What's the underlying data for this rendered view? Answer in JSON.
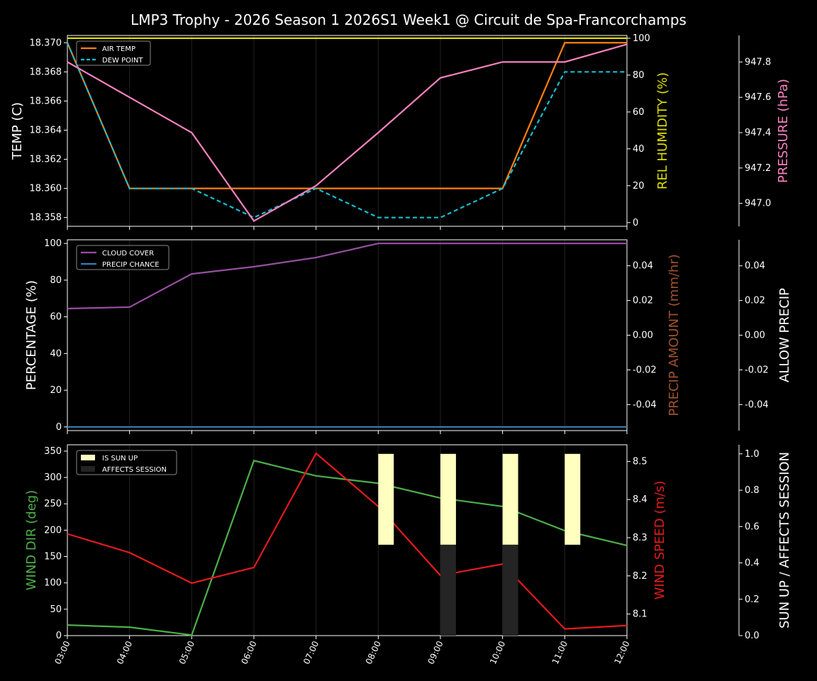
{
  "title": "LMP3 Trophy - 2026 Season 1 2026S1 Week1 @ Circuit de Spa-Francorchamps",
  "colors": {
    "background": "#000000",
    "air_temp": "#ff7f0e",
    "dew_point": "#17becf",
    "humidity": "#dddd00",
    "pressure": "#f781bf",
    "cloud": "#984ea3",
    "precip_chance": "#377eb8",
    "precip_amount": "#a0522d",
    "wind_dir": "#4daf4a",
    "wind_speed": "#e41a1c",
    "sun_up": "#ffffc0",
    "affects_session": "#242424"
  },
  "chart_data": [
    {
      "type": "line",
      "x": [
        "03:00",
        "04:00",
        "05:00",
        "06:00",
        "07:00",
        "08:00",
        "09:00",
        "10:00",
        "11:00",
        "12:00"
      ],
      "axes": {
        "left": {
          "label": "TEMP (C)",
          "ylim": [
            18.3574,
            18.3705
          ],
          "ticks": [
            "18.358",
            "18.360",
            "18.362",
            "18.364",
            "18.366",
            "18.368",
            "18.370"
          ]
        },
        "right1": {
          "label": "REL HUMIDITY (%)",
          "ylim": [
            -2,
            101.5
          ],
          "ticks": [
            "0",
            "20",
            "40",
            "60",
            "80",
            "100"
          ]
        },
        "right2": {
          "label": "PRESSURE (hPa)",
          "ylim": [
            946.87,
            947.95
          ],
          "ticks": [
            "947.0",
            "947.2",
            "947.4",
            "947.6",
            "947.8"
          ]
        }
      },
      "legend": {
        "placement": "top-left",
        "entries": [
          "AIR TEMP",
          "DEW POINT"
        ]
      },
      "series": [
        {
          "name": "AIR TEMP",
          "axis": "left",
          "style": "solid",
          "values": [
            18.37,
            18.36,
            18.36,
            18.36,
            18.36,
            18.36,
            18.36,
            18.36,
            18.37,
            18.37
          ]
        },
        {
          "name": "DEW POINT",
          "axis": "left",
          "style": "dashed",
          "values": [
            18.37,
            18.36,
            18.36,
            18.358,
            18.36,
            18.358,
            18.358,
            18.36,
            18.368,
            18.368
          ]
        },
        {
          "axis": "right1",
          "key": "humidity",
          "values": [
            100,
            100,
            100,
            100,
            100,
            100,
            100,
            100,
            100,
            100
          ]
        },
        {
          "axis": "right2",
          "key": "pressure",
          "values": [
            947.8,
            947.6,
            947.4,
            946.9,
            947.1,
            947.4,
            947.71,
            947.8,
            947.8,
            947.9
          ]
        }
      ]
    },
    {
      "type": "line",
      "x": [
        "03:00",
        "04:00",
        "05:00",
        "06:00",
        "07:00",
        "08:00",
        "09:00",
        "10:00",
        "11:00",
        "12:00"
      ],
      "axes": {
        "left": {
          "label": "PERCENTAGE (%)",
          "ylim": [
            -2,
            102
          ],
          "ticks": [
            "0",
            "20",
            "40",
            "60",
            "80",
            "100"
          ]
        },
        "right1": {
          "label": "PRECIP AMOUNT (mm/hr)",
          "ylim": [
            -0.055,
            0.055
          ],
          "ticks": [
            "-0.04",
            "-0.02",
            "0.00",
            "0.02",
            "0.04"
          ]
        },
        "right2": {
          "label": "ALLOW PRECIP",
          "ylim": [
            -0.055,
            0.055
          ],
          "ticks": [
            "-0.04",
            "-0.02",
            "0.00",
            "0.02",
            "0.04"
          ]
        }
      },
      "legend": {
        "placement": "top-left",
        "entries": [
          "CLOUD COVER",
          "PRECIP CHANCE"
        ]
      },
      "series": [
        {
          "name": "CLOUD COVER",
          "axis": "left",
          "values": [
            64.5,
            65.3,
            83.4,
            87.3,
            92.3,
            100,
            100,
            100,
            100,
            100
          ]
        },
        {
          "name": "PRECIP CHANCE",
          "axis": "left",
          "values": [
            0,
            0,
            0,
            0,
            0,
            0,
            0,
            0,
            0,
            0
          ]
        }
      ]
    },
    {
      "type": "line",
      "x": [
        "03:00",
        "04:00",
        "05:00",
        "06:00",
        "07:00",
        "08:00",
        "09:00",
        "10:00",
        "11:00",
        "12:00"
      ],
      "axes": {
        "left": {
          "label": "WIND DIR (deg)",
          "ylim": [
            0,
            362
          ],
          "ticks": [
            "0",
            "50",
            "100",
            "150",
            "200",
            "250",
            "300",
            "350"
          ]
        },
        "right1": {
          "label": "WIND SPEED (m/s)",
          "ylim": [
            8.0435,
            8.5435
          ],
          "ticks": [
            "8.1",
            "8.2",
            "8.3",
            "8.4",
            "8.5"
          ]
        },
        "right2": {
          "label": "SUN UP / AFFECTS SESSION",
          "ylim": [
            0,
            1.05
          ],
          "ticks": [
            "0.0",
            "0.2",
            "0.4",
            "0.6",
            "0.8",
            "1.0"
          ]
        }
      },
      "legend": {
        "placement": "top-left",
        "entries": [
          "IS SUN UP",
          "AFFECTS SESSION"
        ]
      },
      "series": [
        {
          "axis": "left",
          "key": "wind_dir",
          "values": [
            20,
            16,
            1,
            332,
            303,
            289,
            261,
            245,
            199,
            171
          ]
        },
        {
          "axis": "right1",
          "key": "wind_speed",
          "values": [
            8.31,
            8.261,
            8.181,
            8.222,
            8.521,
            8.382,
            8.201,
            8.231,
            8.061,
            8.07
          ]
        },
        {
          "name": "IS SUN UP",
          "axis": "right2",
          "type": "bar",
          "values": [
            0,
            0,
            0,
            0,
            0,
            1,
            1,
            1,
            1,
            0
          ]
        },
        {
          "name": "AFFECTS SESSION",
          "axis": "right2",
          "type": "bar",
          "values": [
            0,
            0,
            0,
            0,
            0,
            0,
            1,
            1,
            0,
            0
          ]
        }
      ]
    }
  ]
}
